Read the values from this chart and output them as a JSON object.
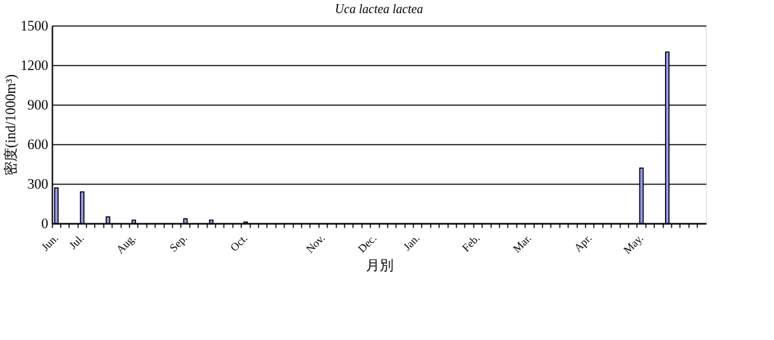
{
  "chart_data": {
    "type": "bar",
    "title": "Uca lactea lactea",
    "xlabel": "月別",
    "ylabel": "密度(ind/1000m³)",
    "categories": [
      "Jun.",
      null,
      null,
      "Jul.",
      null,
      null,
      null,
      null,
      null,
      "Aug.",
      null,
      null,
      null,
      null,
      null,
      "Sep.",
      null,
      null,
      null,
      null,
      null,
      null,
      "Oct.",
      null,
      null,
      null,
      null,
      null,
      null,
      null,
      null,
      "Nov.",
      null,
      null,
      null,
      null,
      null,
      "Dec.",
      null,
      null,
      null,
      null,
      "Jan.",
      null,
      null,
      null,
      null,
      null,
      null,
      "Feb.",
      null,
      null,
      null,
      null,
      null,
      "Mar.",
      null,
      null,
      null,
      null,
      null,
      null,
      "Apr.",
      null,
      null,
      null,
      null,
      null,
      "May.",
      null,
      null,
      null,
      null,
      null,
      null,
      null
    ],
    "values": [
      270,
      null,
      null,
      240,
      null,
      null,
      50,
      null,
      null,
      25,
      null,
      null,
      null,
      null,
      null,
      35,
      null,
      null,
      25,
      null,
      null,
      null,
      10,
      null,
      null,
      null,
      null,
      null,
      null,
      null,
      null,
      null,
      null,
      null,
      null,
      null,
      null,
      null,
      null,
      null,
      null,
      null,
      null,
      null,
      null,
      null,
      null,
      null,
      null,
      null,
      null,
      null,
      null,
      null,
      null,
      null,
      null,
      null,
      null,
      null,
      null,
      null,
      null,
      null,
      null,
      null,
      null,
      null,
      420,
      null,
      null,
      1300,
      null,
      null,
      null,
      null
    ],
    "color": "#9999ff",
    "ylim": [
      0,
      1500
    ],
    "yticks": [
      0,
      300,
      600,
      900,
      1200,
      1500
    ],
    "grid": "y"
  }
}
